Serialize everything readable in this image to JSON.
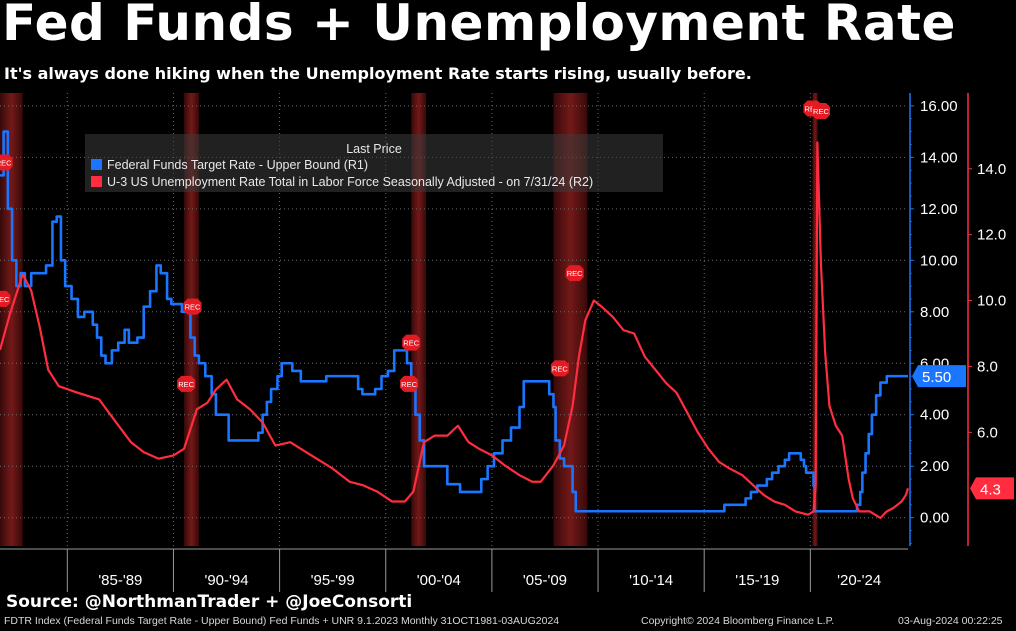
{
  "header": {
    "title": "Fed Funds + Unemployment Rate",
    "subtitle": "It's always done hiking when the Unemployment Rate starts rising, usually before."
  },
  "source": "Source: @NorthmanTrader + @JoeConsorti",
  "footer": {
    "left": "FDTR Index (Federal Funds Target Rate - Upper Bound) Fed Funds + UNR 9.1.2023  Monthly 31OCT1981-03AUG2024",
    "center": "Copyright© 2024 Bloomberg Finance L.P.",
    "right": "03-Aug-2024 00:22:25"
  },
  "legend": {
    "heading": "Last Price",
    "items": [
      {
        "label": "Federal Funds Target Rate - Upper Bound  (R1)",
        "color": "#1a75ff"
      },
      {
        "label": "U-3 US Unemployment Rate Total in Labor Force Seasonally Adjusted -  on 7/31/24  (R2)",
        "color": "#ff2d3f"
      }
    ]
  },
  "chart_data": {
    "type": "line",
    "xlim": [
      1981.83,
      2024.6
    ],
    "x_tick_labels": [
      "'85-'89",
      "'90-'94",
      "'95-'99",
      "'00-'04",
      "'05-'09",
      "'10-'14",
      "'15-'19",
      "'20-'24"
    ],
    "x_tick_boundaries": [
      1985,
      1990,
      1995,
      2000,
      2005,
      2010,
      2015,
      2020,
      2025
    ],
    "recessions": [
      [
        1981.5,
        1982.9
      ],
      [
        1990.5,
        1991.2
      ],
      [
        2001.2,
        2001.9
      ],
      [
        2007.9,
        2009.5
      ],
      [
        2020.1,
        2020.35
      ]
    ],
    "rec_marker_label": "REC",
    "rec_markers": [
      [
        1982.0,
        13.8
      ],
      [
        1981.9,
        8.5
      ],
      [
        1990.9,
        8.2
      ],
      [
        1990.6,
        5.2
      ],
      [
        2001.2,
        6.8
      ],
      [
        2001.1,
        5.2
      ],
      [
        2008.2,
        5.8
      ],
      [
        2008.9,
        9.5
      ],
      [
        2020.1,
        15.9
      ],
      [
        2020.5,
        15.8
      ]
    ],
    "axis_right1": {
      "range": [
        -1.1,
        16.5
      ],
      "ticks": [
        0,
        2,
        4,
        6,
        8,
        10,
        12,
        14,
        16
      ],
      "tick_labels": [
        "0.00",
        "2.00",
        "4.00",
        "6.00",
        "8.00",
        "10.00",
        "12.00",
        "14.00",
        "16.00"
      ],
      "last_value_label": "5.50",
      "last_value": 5.5
    },
    "axis_right2": {
      "range": [
        2.55,
        16.3
      ],
      "ticks": [
        6,
        8,
        10,
        12,
        14
      ],
      "tick_labels": [
        "6.0",
        "8.0",
        "10.0",
        "12.0",
        "14.0"
      ],
      "last_value_label": "4.3",
      "last_value": 4.3
    },
    "series": [
      {
        "name": "Federal Funds Target Rate - Upper Bound  (R1)",
        "color": "#1a75ff",
        "axis": "right1",
        "step": true,
        "x": [
          1981.83,
          1982.0,
          1982.2,
          1982.4,
          1982.6,
          1982.8,
          1983.0,
          1983.3,
          1983.6,
          1984.0,
          1984.3,
          1984.5,
          1984.7,
          1984.9,
          1985.2,
          1985.5,
          1985.8,
          1986.2,
          1986.4,
          1986.6,
          1986.8,
          1987.1,
          1987.4,
          1987.7,
          1987.9,
          1988.3,
          1988.6,
          1988.9,
          1989.2,
          1989.4,
          1989.7,
          1989.9,
          1990.4,
          1990.8,
          1991.0,
          1991.2,
          1991.5,
          1991.8,
          1992.0,
          1992.6,
          1993.0,
          1994.0,
          1994.2,
          1994.4,
          1994.6,
          1994.9,
          1995.1,
          1995.6,
          1996.0,
          1997.2,
          1998.7,
          1998.9,
          1999.5,
          1999.8,
          2000.1,
          2000.4,
          2000.9,
          2001.0,
          2001.2,
          2001.4,
          2001.6,
          2001.8,
          2002.9,
          2003.5,
          2004.5,
          2004.8,
          2005.1,
          2005.5,
          2005.9,
          2006.3,
          2006.5,
          2007.7,
          2007.9,
          2008.0,
          2008.2,
          2008.4,
          2008.8,
          2008.95,
          2015.95,
          2016.95,
          2017.2,
          2017.5,
          2017.95,
          2018.2,
          2018.5,
          2018.8,
          2019.0,
          2019.55,
          2019.7,
          2019.8,
          2020.15,
          2020.2,
          2022.2,
          2022.35,
          2022.45,
          2022.6,
          2022.75,
          2022.9,
          2023.1,
          2023.3,
          2023.6,
          2024.6
        ],
        "y": [
          13.3,
          15.0,
          12.0,
          10.0,
          9.0,
          9.5,
          9.0,
          9.5,
          9.5,
          9.8,
          11.5,
          11.7,
          10.0,
          9.0,
          8.5,
          7.8,
          8.0,
          7.5,
          7.0,
          6.3,
          6.0,
          6.5,
          6.8,
          7.3,
          6.8,
          7.0,
          8.2,
          8.8,
          9.8,
          9.5,
          8.5,
          8.3,
          8.0,
          7.0,
          6.3,
          6.0,
          5.5,
          4.8,
          4.0,
          3.0,
          3.0,
          3.3,
          4.0,
          4.5,
          5.0,
          5.5,
          6.0,
          5.7,
          5.3,
          5.5,
          5.0,
          4.8,
          5.0,
          5.5,
          5.7,
          6.5,
          6.5,
          6.0,
          5.0,
          4.0,
          3.0,
          2.0,
          1.3,
          1.0,
          1.5,
          2.0,
          2.5,
          3.0,
          3.5,
          4.3,
          5.3,
          4.8,
          4.3,
          3.0,
          2.3,
          2.0,
          1.0,
          0.25,
          0.5,
          0.75,
          1.0,
          1.25,
          1.5,
          1.75,
          2.0,
          2.25,
          2.5,
          2.25,
          2.0,
          1.75,
          1.25,
          0.25,
          0.5,
          1.0,
          1.75,
          2.5,
          3.25,
          4.0,
          4.75,
          5.25,
          5.5,
          5.5
        ]
      },
      {
        "name": "U-3 US Unemployment Rate Total in Labor Force Seasonally Adjusted -  on 7/31/24  (R2)",
        "color": "#ff2d3f",
        "axis": "right2",
        "x": [
          1981.83,
          1982.3,
          1982.9,
          1983.3,
          1983.7,
          1984.1,
          1984.6,
          1985.5,
          1986.5,
          1987.3,
          1988.0,
          1988.6,
          1989.3,
          1990.0,
          1990.5,
          1991.1,
          1991.6,
          1992.0,
          1992.5,
          1993.0,
          1993.6,
          1994.2,
          1994.8,
          1995.5,
          1996.5,
          1997.5,
          1998.3,
          1998.9,
          1999.6,
          2000.3,
          2000.9,
          2001.3,
          2001.8,
          2002.3,
          2002.9,
          2003.4,
          2003.9,
          2004.4,
          2005.0,
          2005.6,
          2006.3,
          2006.9,
          2007.3,
          2007.9,
          2008.4,
          2008.8,
          2009.1,
          2009.4,
          2009.8,
          2010.2,
          2010.7,
          2011.2,
          2011.7,
          2012.2,
          2012.7,
          2013.2,
          2013.7,
          2014.2,
          2014.7,
          2015.2,
          2015.7,
          2016.2,
          2016.8,
          2017.3,
          2017.8,
          2018.3,
          2018.8,
          2019.3,
          2019.9,
          2020.15,
          2020.25,
          2020.33,
          2020.5,
          2020.7,
          2020.9,
          2021.2,
          2021.5,
          2021.8,
          2022.0,
          2022.3,
          2022.8,
          2023.3,
          2023.6,
          2023.9,
          2024.1,
          2024.3,
          2024.5,
          2024.6
        ],
        "y": [
          8.5,
          9.6,
          10.8,
          10.3,
          9.2,
          7.9,
          7.4,
          7.2,
          7.0,
          6.3,
          5.7,
          5.4,
          5.2,
          5.3,
          5.5,
          6.7,
          6.9,
          7.3,
          7.6,
          7.0,
          6.7,
          6.3,
          5.6,
          5.7,
          5.3,
          4.9,
          4.5,
          4.4,
          4.2,
          3.9,
          3.9,
          4.2,
          5.7,
          5.9,
          5.9,
          6.2,
          5.7,
          5.5,
          5.3,
          5.0,
          4.7,
          4.5,
          4.5,
          5.0,
          5.6,
          6.8,
          8.3,
          9.4,
          10.0,
          9.8,
          9.5,
          9.1,
          9.0,
          8.3,
          7.9,
          7.5,
          7.2,
          6.6,
          6.0,
          5.5,
          5.1,
          4.9,
          4.7,
          4.4,
          4.1,
          3.9,
          3.8,
          3.6,
          3.5,
          3.6,
          4.4,
          14.8,
          11.1,
          8.4,
          6.8,
          6.2,
          5.9,
          4.6,
          4.0,
          3.6,
          3.6,
          3.4,
          3.6,
          3.7,
          3.8,
          3.9,
          4.1,
          4.3
        ]
      }
    ]
  }
}
